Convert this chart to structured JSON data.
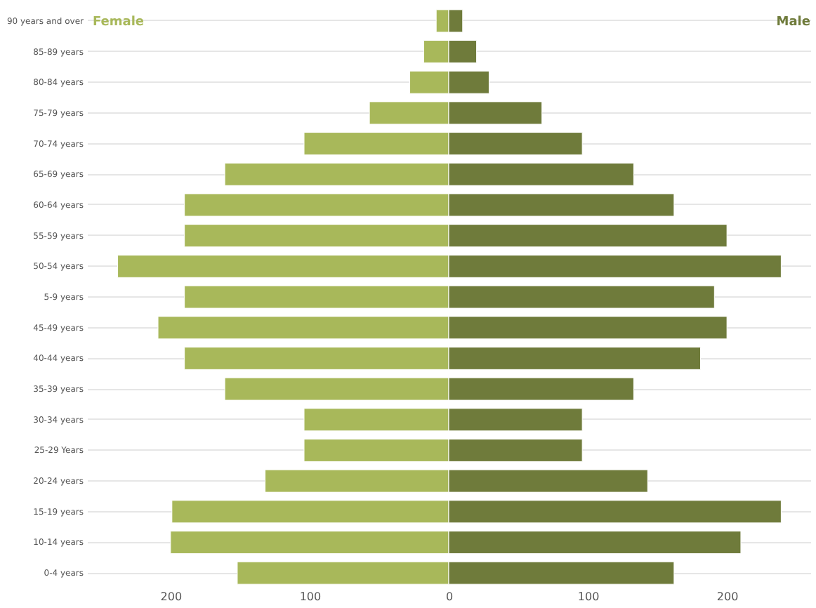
{
  "chart_data": {
    "type": "bar",
    "orientation": "horizontal",
    "categories": [
      "90 years and over",
      "85-89 years",
      "80-84 years",
      "75-79 years",
      "70-74 years",
      "65-69 years",
      "60-64 years",
      "55-59 years",
      "50-54 years",
      "5-9 years",
      "45-49 years",
      "40-44 years",
      "35-39 years",
      "30-34 years",
      "25-29 Years",
      "20-24 years",
      "15-19 years",
      "10-14 years",
      "0-4 years"
    ],
    "series": [
      {
        "name": "Female",
        "color": "#a8b85a",
        "values": [
          -9,
          -18,
          -28,
          -57,
          -104,
          -161,
          -190,
          -190,
          -238,
          -190,
          -209,
          -190,
          -161,
          -104,
          -104,
          -132,
          -199,
          -200,
          -152
        ]
      },
      {
        "name": "Male",
        "color": "#6f7b3b",
        "values": [
          10,
          20,
          29,
          67,
          96,
          133,
          162,
          200,
          239,
          191,
          200,
          181,
          133,
          96,
          96,
          143,
          239,
          210,
          162
        ]
      }
    ],
    "xlim": [
      -260,
      260
    ],
    "xticks": [
      {
        "value": -200,
        "label": "200"
      },
      {
        "value": -100,
        "label": "100"
      },
      0,
      100,
      200
    ],
    "grid": "y",
    "legend": false,
    "stacked": true
  }
}
